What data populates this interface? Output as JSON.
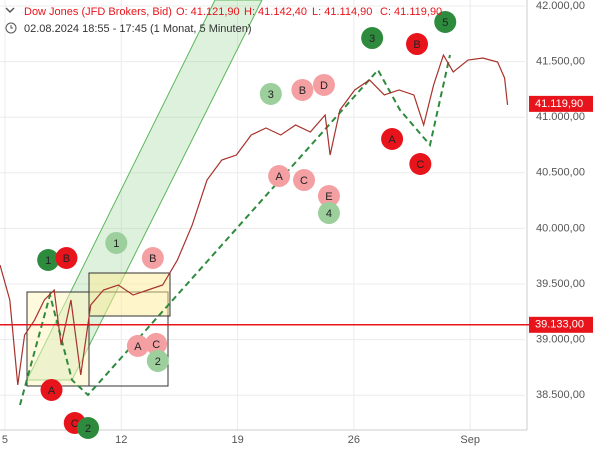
{
  "chart_data": {
    "type": "line",
    "title": "Dow Jones (JFD Brokers, Bid)",
    "ohlc": [
      "O: 41.121,90",
      "H: 41.142,40",
      "L: 41.114,90",
      "C: 41.119,90"
    ],
    "subtitle": "02.08.2024 18:55 - 17:45",
    "period": "(1 Monat, 5 Minuten)",
    "xlim": [
      4.7,
      36.3
    ],
    "xticks": [
      5,
      12,
      19,
      26,
      {
        "value": 33,
        "label": "Sep"
      }
    ],
    "ylim": [
      38187,
      42054
    ],
    "yticks": [
      {
        "value": 38500,
        "label": "38.500,00"
      },
      {
        "value": 39000,
        "label": "39.000,00"
      },
      {
        "value": 39500,
        "label": "39.500,00"
      },
      {
        "value": 40000,
        "label": "40.000,00"
      },
      {
        "value": 40500,
        "label": "40.500,00"
      },
      {
        "value": 41000,
        "label": "41.000,00"
      },
      {
        "value": 41500,
        "label": "41.500,00"
      },
      {
        "value": 42000,
        "label": "42.000,00"
      }
    ],
    "grid": true,
    "series": [
      {
        "color": "#a8322c",
        "x": [
          4.7,
          5.29,
          5.77,
          6.18,
          6.78,
          7.37,
          7.96,
          8.38,
          8.97,
          9.56,
          10.16,
          10.93,
          11.82,
          12.71,
          13.6,
          14.49,
          15.38,
          16.27,
          17.16,
          18.05,
          18.93,
          19.82,
          20.71,
          21.6,
          22.49,
          23.38,
          24.27,
          24.57,
          25.16,
          26.05,
          26.94,
          27.83,
          28.72,
          29.61,
          30.2,
          30.8,
          31.39,
          31.98,
          32.87,
          33.76,
          34.65,
          35.07,
          35.25
        ],
        "values": [
          39671,
          39356,
          38592,
          39041,
          39176,
          39356,
          39446,
          38951,
          39356,
          38682,
          39311,
          39446,
          39491,
          39401,
          39446,
          39491,
          39716,
          40031,
          40435,
          40615,
          40660,
          40840,
          40903,
          40840,
          40930,
          40867,
          41020,
          40660,
          41065,
          41245,
          41335,
          41200,
          41245,
          41200,
          40930,
          41290,
          41559,
          41407,
          41514,
          41532,
          41496,
          41353,
          41110
        ]
      }
    ],
    "price_line": {
      "value": 39133,
      "label": "39.133,00",
      "color": "#e8141c"
    },
    "last_price": {
      "value": 41119.9,
      "label": "41.119,90",
      "color": "#e8141c"
    },
    "annotations": [
      {
        "label": "1",
        "x": 7.6,
        "y": 39716,
        "color": "#2e8b3e"
      },
      {
        "label": "B",
        "x": 8.7,
        "y": 39734,
        "color": "#e8141c"
      },
      {
        "label": "1",
        "x": 11.7,
        "y": 39869,
        "color": "#9ccf9c"
      },
      {
        "label": "B",
        "x": 13.9,
        "y": 39734,
        "color": "#f4a0a3"
      },
      {
        "label": "A",
        "x": 7.8,
        "y": 38547,
        "color": "#e8141c"
      },
      {
        "label": "C",
        "x": 9.2,
        "y": 38250,
        "color": "#e8141c"
      },
      {
        "label": "2",
        "x": 10.0,
        "y": 38205,
        "color": "#2e8b3e"
      },
      {
        "label": "A",
        "x": 13.0,
        "y": 38943,
        "color": "#f4a0a3"
      },
      {
        "label": "C",
        "x": 14.1,
        "y": 38961,
        "color": "#f4a0a3"
      },
      {
        "label": "2",
        "x": 14.2,
        "y": 38808,
        "color": "#9ccf9c"
      },
      {
        "label": "3",
        "x": 21.0,
        "y": 41209,
        "color": "#9ccf9c"
      },
      {
        "label": "B",
        "x": 22.9,
        "y": 41245,
        "color": "#f4a0a3"
      },
      {
        "label": "D",
        "x": 24.2,
        "y": 41290,
        "color": "#f4a0a3"
      },
      {
        "label": "A",
        "x": 21.5,
        "y": 40471,
        "color": "#f4a0a3"
      },
      {
        "label": "C",
        "x": 23.0,
        "y": 40435,
        "color": "#f4a0a3"
      },
      {
        "label": "E",
        "x": 24.5,
        "y": 40291,
        "color": "#f4a0a3"
      },
      {
        "label": "4",
        "x": 24.5,
        "y": 40138,
        "color": "#9ccf9c"
      },
      {
        "label": "3",
        "x": 27.1,
        "y": 41712,
        "color": "#2e8b3e"
      },
      {
        "label": "B",
        "x": 29.8,
        "y": 41658,
        "color": "#e8141c"
      },
      {
        "label": "A",
        "x": 28.3,
        "y": 40804,
        "color": "#e8141c"
      },
      {
        "label": "C",
        "x": 30.0,
        "y": 40579,
        "color": "#e8141c"
      },
      {
        "label": "5",
        "x": 31.5,
        "y": 41856,
        "color": "#2e8b3e"
      }
    ]
  }
}
